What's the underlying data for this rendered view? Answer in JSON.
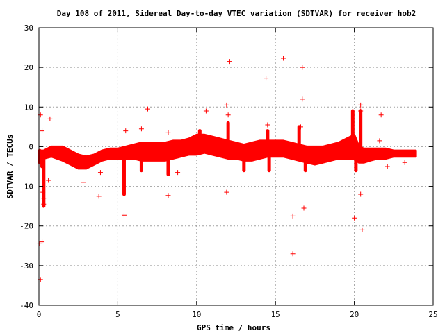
{
  "chart_data": {
    "type": "scatter",
    "title": "Day 108 of 2011, Sidereal Day-to-day VTEC variation (SDTVAR) for receiver hob2",
    "xlabel": "GPS time / hours",
    "ylabel": "SDTVAR / TECUs",
    "xlim": [
      0,
      25
    ],
    "ylim": [
      -40,
      30
    ],
    "xticks": [
      "0",
      "5",
      "10",
      "15",
      "20",
      "25"
    ],
    "yticks": [
      "-40",
      "-30",
      "-20",
      "-10",
      "0",
      "10",
      "20",
      "30"
    ],
    "grid": true,
    "marker": "plus",
    "color": "#ff0000",
    "band": {
      "x": [
        0.0,
        0.3,
        0.8,
        1.5,
        2.0,
        2.5,
        3.0,
        3.5,
        4.0,
        4.5,
        5.0,
        5.5,
        6.0,
        6.5,
        7.0,
        7.5,
        8.0,
        8.5,
        9.0,
        9.5,
        10.0,
        10.5,
        11.0,
        11.5,
        12.0,
        12.5,
        13.0,
        13.5,
        14.0,
        14.5,
        15.0,
        15.5,
        16.0,
        16.5,
        17.0,
        17.5,
        18.0,
        18.5,
        19.0,
        19.5,
        20.0,
        20.3,
        20.6,
        21.0,
        21.5,
        22.0,
        22.5,
        23.0,
        23.5,
        23.9
      ],
      "lower": [
        -3.5,
        -3,
        -2.5,
        -3.5,
        -4.5,
        -5.5,
        -5.5,
        -4.5,
        -3.5,
        -3,
        -3,
        -3,
        -3,
        -3.5,
        -3.5,
        -3.5,
        -3.5,
        -3,
        -2.5,
        -2,
        -2,
        -1.5,
        -2,
        -2.5,
        -3,
        -3,
        -3.5,
        -3.5,
        -3,
        -2.5,
        -2.5,
        -2.5,
        -3,
        -3.5,
        -4,
        -4.5,
        -4,
        -3.5,
        -3,
        -3,
        -3,
        -4,
        -4,
        -3.5,
        -3,
        -3,
        -2.5,
        -2.5,
        -2.5,
        -2.5
      ],
      "upper": [
        -1,
        -1,
        0,
        0,
        -1,
        -2,
        -2.5,
        -2,
        -1,
        -0.5,
        -0.5,
        0,
        0.5,
        1,
        1,
        1,
        1,
        1.5,
        1.5,
        2,
        3,
        3,
        2.5,
        2,
        1.5,
        1,
        0.5,
        1,
        1.5,
        1.5,
        1.5,
        1.5,
        1,
        0.5,
        0,
        0,
        0,
        0.5,
        1,
        2,
        3,
        0,
        -0.5,
        -0.5,
        -0.5,
        -0.5,
        -1,
        -1,
        -1,
        -1
      ]
    },
    "spikes": [
      {
        "x": 5.4,
        "from": -3,
        "to": -12
      },
      {
        "x": 6.5,
        "from": -3,
        "to": -6
      },
      {
        "x": 8.2,
        "from": -3,
        "to": -7
      },
      {
        "x": 9.3,
        "from": 1,
        "to": -2
      },
      {
        "x": 10.2,
        "from": 1,
        "to": 4
      },
      {
        "x": 12.0,
        "from": 1,
        "to": 6
      },
      {
        "x": 13.0,
        "from": -1,
        "to": -6
      },
      {
        "x": 14.5,
        "from": 0,
        "to": 4
      },
      {
        "x": 14.6,
        "from": -1,
        "to": -6
      },
      {
        "x": 16.5,
        "from": 0,
        "to": 5
      },
      {
        "x": 16.9,
        "from": -2,
        "to": -6
      },
      {
        "x": 19.9,
        "from": 0,
        "to": 9
      },
      {
        "x": 20.1,
        "from": -2,
        "to": -6
      },
      {
        "x": 20.4,
        "from": 0,
        "to": 9
      },
      {
        "x": 0.05,
        "from": -1,
        "to": -4
      },
      {
        "x": 0.2,
        "from": -2,
        "to": -5
      },
      {
        "x": 0.3,
        "from": -3,
        "to": -15
      }
    ],
    "outliers": [
      {
        "x": 0.05,
        "y": -24.5
      },
      {
        "x": 0.2,
        "y": -24
      },
      {
        "x": 0.1,
        "y": -33.5
      },
      {
        "x": 0.3,
        "y": -13
      },
      {
        "x": 0.25,
        "y": -11.5
      },
      {
        "x": 0.3,
        "y": -14.5
      },
      {
        "x": 0.1,
        "y": 8
      },
      {
        "x": 0.2,
        "y": 4
      },
      {
        "x": 0.7,
        "y": 7
      },
      {
        "x": 0.6,
        "y": -8.5
      },
      {
        "x": 2.8,
        "y": -9
      },
      {
        "x": 3.8,
        "y": -12.5
      },
      {
        "x": 3.9,
        "y": -6.5
      },
      {
        "x": 5.4,
        "y": -17.3
      },
      {
        "x": 5.5,
        "y": 4
      },
      {
        "x": 6.5,
        "y": 4.5
      },
      {
        "x": 6.9,
        "y": 9.5
      },
      {
        "x": 8.2,
        "y": -12.3
      },
      {
        "x": 8.2,
        "y": 3.5
      },
      {
        "x": 8.8,
        "y": -6.5
      },
      {
        "x": 10.6,
        "y": 9
      },
      {
        "x": 11.9,
        "y": 10.5
      },
      {
        "x": 11.9,
        "y": -11.5
      },
      {
        "x": 12.1,
        "y": 21.5
      },
      {
        "x": 12.0,
        "y": 8
      },
      {
        "x": 14.4,
        "y": 17.3
      },
      {
        "x": 14.5,
        "y": 5.5
      },
      {
        "x": 15.5,
        "y": 22.3
      },
      {
        "x": 16.1,
        "y": -17.5
      },
      {
        "x": 16.1,
        "y": -27
      },
      {
        "x": 16.7,
        "y": 20
      },
      {
        "x": 16.7,
        "y": 12
      },
      {
        "x": 16.8,
        "y": -15.5
      },
      {
        "x": 16.6,
        "y": 5
      },
      {
        "x": 20.0,
        "y": -18
      },
      {
        "x": 20.4,
        "y": -12
      },
      {
        "x": 20.5,
        "y": -21
      },
      {
        "x": 20.4,
        "y": 10.5
      },
      {
        "x": 20.4,
        "y": 9
      },
      {
        "x": 21.7,
        "y": 8
      },
      {
        "x": 21.6,
        "y": 1.5
      },
      {
        "x": 22.1,
        "y": -5
      },
      {
        "x": 23.2,
        "y": -4
      }
    ]
  }
}
